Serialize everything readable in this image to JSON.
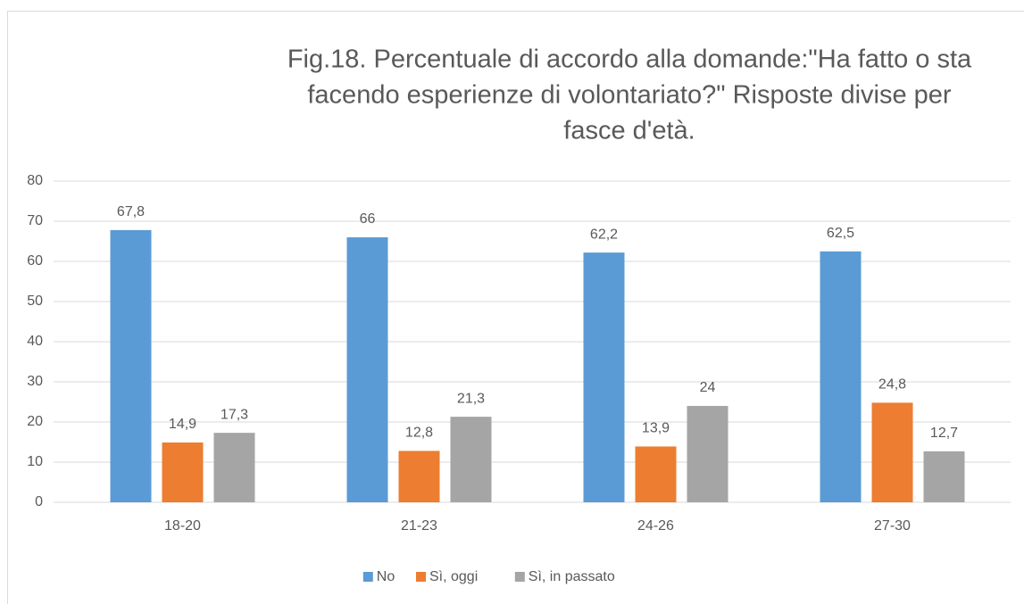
{
  "chart_data": {
    "type": "bar",
    "title_lines": [
      "Fig.18. Percentuale di accordo alla domande:\"Ha fatto o sta",
      "facendo esperienze di volontariato?\" Risposte divise per",
      "fasce d'età."
    ],
    "categories": [
      "18-20",
      "21-23",
      "24-26",
      "27-30"
    ],
    "series": [
      {
        "name": "No",
        "color": "#5b9bd5",
        "values": [
          67.8,
          66,
          62.2,
          62.5
        ],
        "value_labels": [
          "67,8",
          "66",
          "62,2",
          "62,5"
        ]
      },
      {
        "name": "Sì, oggi",
        "color": "#ed7d31",
        "values": [
          14.9,
          12.8,
          13.9,
          24.8
        ],
        "value_labels": [
          "14,9",
          "12,8",
          "13,9",
          "24,8"
        ]
      },
      {
        "name": "Sì, in passato",
        "color": "#a5a5a5",
        "values": [
          17.3,
          21.3,
          24,
          12.7
        ],
        "value_labels": [
          "17,3",
          "21,3",
          "24",
          "12,7"
        ]
      }
    ],
    "ylim": [
      0,
      80
    ],
    "yticks": [
      0,
      10,
      20,
      30,
      40,
      50,
      60,
      70,
      80
    ],
    "grid": true,
    "legend": "bottom"
  }
}
